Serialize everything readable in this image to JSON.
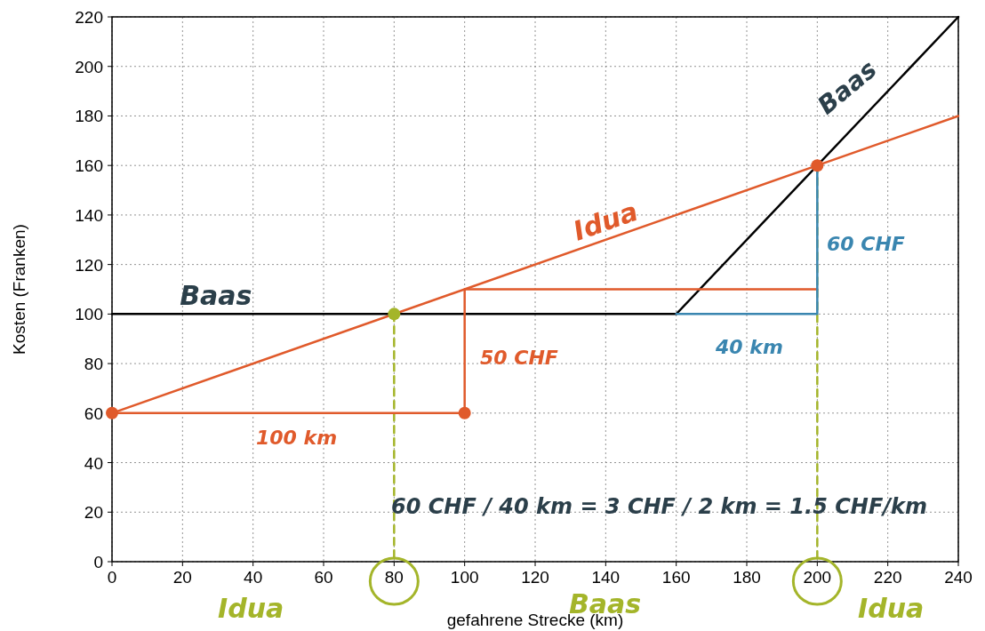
{
  "chart_data": {
    "type": "line",
    "xlabel": "gefahrene Strecke (km)",
    "ylabel": "Kosten (Franken)",
    "xlim": [
      0,
      240
    ],
    "ylim": [
      0,
      220
    ],
    "xticks": [
      0,
      20,
      40,
      60,
      80,
      100,
      120,
      140,
      160,
      180,
      200,
      220,
      240
    ],
    "yticks": [
      0,
      20,
      40,
      60,
      80,
      100,
      120,
      140,
      160,
      180,
      200,
      220
    ],
    "grid": true,
    "series": [
      {
        "name": "Idua",
        "color": "#e05a2b",
        "x": [
          0,
          240
        ],
        "values": [
          60,
          180
        ]
      },
      {
        "name": "Baas",
        "color": "#000000",
        "x": [
          0,
          160,
          240
        ],
        "values": [
          100,
          100,
          220
        ]
      },
      {
        "color": "#e05a2b",
        "x": [
          0,
          100,
          100,
          200
        ],
        "values": [
          60,
          60,
          110,
          110
        ]
      },
      {
        "color": "#3a86b0",
        "x": [
          160,
          200,
          200
        ],
        "values": [
          100,
          100,
          160
        ]
      },
      {
        "color": "#a4b52a",
        "line_style": "dashed",
        "x": [
          80,
          80
        ],
        "values": [
          100,
          0
        ]
      },
      {
        "color": "#a4b52a",
        "line_style": "dashed",
        "x": [
          200,
          200
        ],
        "values": [
          160,
          0
        ]
      },
      {
        "type": "scatter",
        "color": "#e05a2b",
        "x": [
          0,
          100,
          200
        ],
        "values": [
          60,
          60,
          160
        ]
      },
      {
        "type": "scatter",
        "color": "#a4b52a",
        "x": [
          80
        ],
        "values": [
          100
        ]
      }
    ],
    "annotations": [
      "50 CHF",
      "100 km",
      "60 CHF",
      "40 km",
      "Baas",
      "60 CHF / 40 km = 3 CHF / 2 km = 1.5 CHF/km",
      "Idua",
      "Baas",
      "Idua"
    ]
  }
}
